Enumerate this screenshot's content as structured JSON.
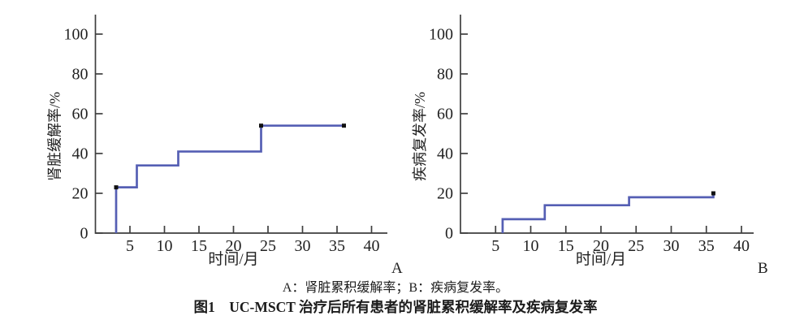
{
  "figure": {
    "caption_note": "A：肾脏累积缓解率；B：疾病复发率。",
    "caption_title": "图1　UC-MSCT 治疗后所有患者的肾脏累积缓解率及疾病复发率"
  },
  "chart_data": [
    {
      "type": "line",
      "subtype": "kaplan-meier-step",
      "panel": "A",
      "title": "",
      "ylabel": "肾脏缓解率/%",
      "xlabel": "时间/月",
      "xlim": [
        0,
        42
      ],
      "ylim": [
        0,
        110
      ],
      "xticks": [
        5,
        10,
        15,
        20,
        25,
        30,
        35,
        40
      ],
      "yticks": [
        0,
        20,
        40,
        60,
        80,
        100
      ],
      "grid": "off",
      "legend": "none",
      "series": [
        {
          "name": "肾脏累积缓解率",
          "step_points": [
            [
              3,
              0
            ],
            [
              3,
              23
            ],
            [
              6,
              23
            ],
            [
              6,
              34
            ],
            [
              12,
              34
            ],
            [
              12,
              41
            ],
            [
              24,
              41
            ],
            [
              24,
              54
            ],
            [
              36,
              54
            ]
          ],
          "censor_markers": [
            [
              3,
              23
            ],
            [
              24,
              54
            ],
            [
              36,
              54
            ]
          ]
        }
      ],
      "line_color": "#555fb4",
      "marker_color": "#111111",
      "axis_color": "#3f3f3f"
    },
    {
      "type": "line",
      "subtype": "kaplan-meier-step",
      "panel": "B",
      "title": "",
      "ylabel": "疾病复发率/%",
      "xlabel": "时间/月",
      "xlim": [
        0,
        42
      ],
      "ylim": [
        0,
        110
      ],
      "xticks": [
        5,
        10,
        15,
        20,
        25,
        30,
        35,
        40
      ],
      "yticks": [
        0,
        20,
        40,
        60,
        80,
        100
      ],
      "grid": "off",
      "legend": "none",
      "series": [
        {
          "name": "疾病复发率",
          "step_points": [
            [
              6,
              0
            ],
            [
              6,
              7
            ],
            [
              12,
              7
            ],
            [
              12,
              14
            ],
            [
              24,
              14
            ],
            [
              24,
              18
            ],
            [
              36,
              18
            ],
            [
              36,
              19.5
            ]
          ],
          "censor_markers": [
            [
              36,
              20
            ]
          ]
        }
      ],
      "line_color": "#555fb4",
      "marker_color": "#111111",
      "axis_color": "#3f3f3f"
    }
  ]
}
